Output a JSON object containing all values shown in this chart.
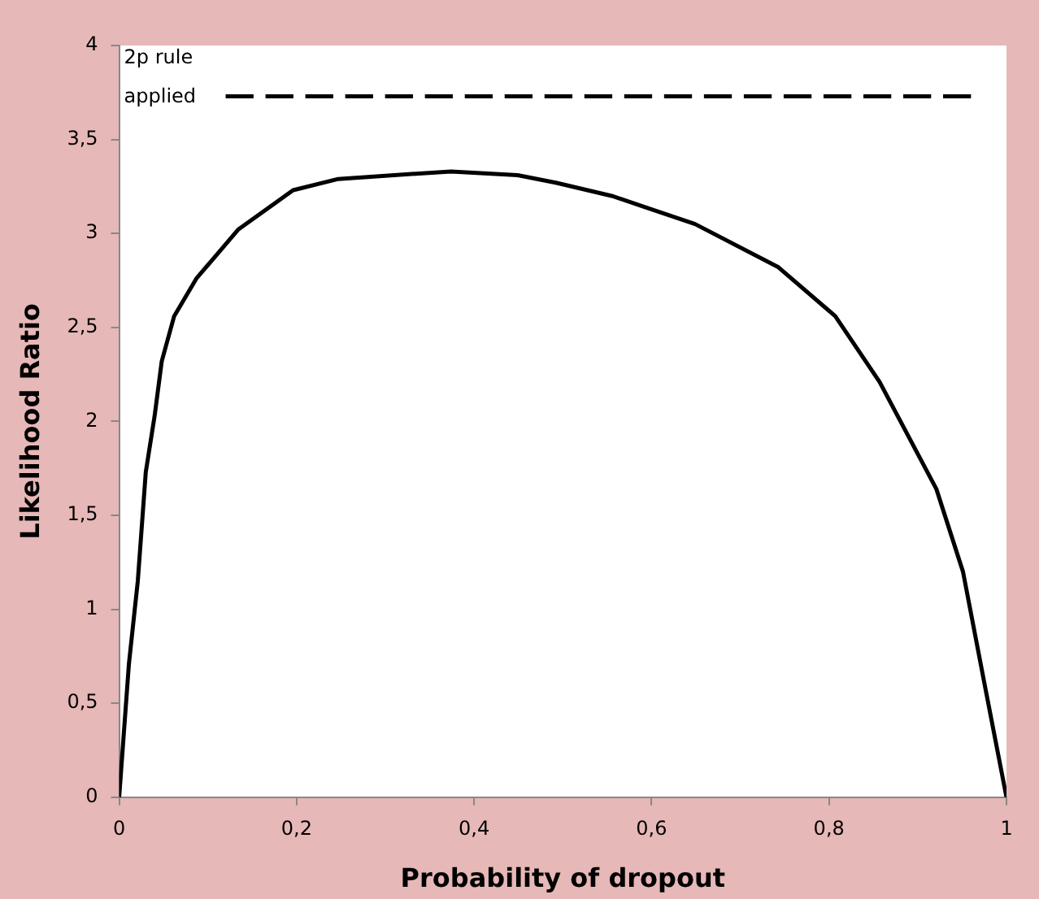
{
  "chart_data": {
    "type": "line",
    "xlabel": "Probability of dropout",
    "ylabel": "Likelihood Ratio",
    "annotations": [
      "2p rule applied"
    ],
    "xlim": [
      0,
      1
    ],
    "xticks": [
      0,
      {
        "value": 0.2,
        "label": "0,2"
      },
      {
        "value": 0.4,
        "label": "0,4"
      },
      {
        "value": 0.6,
        "label": "0,6"
      },
      {
        "value": 0.8,
        "label": "0,8"
      },
      1
    ],
    "ylim": [
      0,
      4
    ],
    "yticks": [
      0,
      {
        "value": 0.5,
        "label": "0,5"
      },
      1,
      {
        "value": 1.5,
        "label": "1,5"
      },
      2,
      {
        "value": 2.5,
        "label": "2,5"
      },
      3,
      {
        "value": 3.5,
        "label": "3,5"
      },
      4
    ],
    "grid": false,
    "legend": false,
    "marker": "none",
    "series": [
      {
        "color": "#000000",
        "line_style": "solid",
        "x": [
          0,
          0.011,
          0.021,
          0.03,
          0.04,
          0.048,
          0.062,
          0.087,
          0.134,
          0.196,
          0.247,
          0.31,
          0.374,
          0.449,
          0.492,
          0.555,
          0.649,
          0.743,
          0.807,
          0.857,
          0.921,
          0.951,
          0.977,
          1
        ],
        "values": [
          0,
          0.71,
          1.15,
          1.73,
          2.03,
          2.32,
          2.56,
          2.76,
          3.02,
          3.23,
          3.29,
          3.31,
          3.33,
          3.31,
          3.27,
          3.2,
          3.05,
          2.82,
          2.56,
          2.21,
          1.64,
          1.2,
          0.56,
          0
        ]
      },
      {
        "color": "#000000",
        "line_style": "dashed",
        "x": [
          0.12,
          0.96
        ],
        "values": [
          3.73,
          3.73
        ]
      }
    ]
  }
}
